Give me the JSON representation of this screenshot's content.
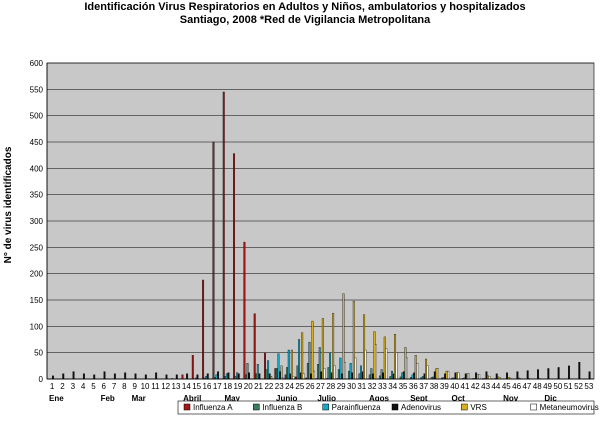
{
  "chart_data": {
    "type": "bar",
    "title": "Identificación Virus Respiratorios en Adultos y Niños, ambulatorios y hospitalizados",
    "subtitle": "Santiago, 2008  *Red de Vigilancia Metropolitana",
    "ylabel": "N° de virus identificados",
    "ylim": [
      0,
      600
    ],
    "yticks": [
      0,
      50,
      100,
      150,
      200,
      250,
      300,
      350,
      400,
      450,
      500,
      550,
      600
    ],
    "grid": true,
    "legend_placement": "bottom",
    "categories": [
      1,
      2,
      3,
      4,
      5,
      6,
      7,
      8,
      9,
      10,
      11,
      12,
      13,
      14,
      15,
      16,
      17,
      18,
      19,
      20,
      21,
      22,
      23,
      24,
      25,
      26,
      27,
      28,
      29,
      30,
      31,
      32,
      33,
      34,
      35,
      36,
      37,
      38,
      39,
      40,
      41,
      42,
      43,
      44,
      45,
      46,
      47,
      48,
      49,
      50,
      51,
      52,
      53
    ],
    "tick_labels": [
      "1",
      "2",
      "3",
      "4",
      "5",
      "6",
      "7",
      "8",
      "9",
      "10",
      "11",
      "12",
      "13",
      "14",
      "15",
      "16",
      "17",
      "18",
      "19",
      "20",
      "21",
      "22",
      "23",
      "24",
      "25",
      "26",
      "27",
      "28",
      "29",
      "30",
      "31",
      "32",
      "33",
      "34",
      "35",
      "36",
      "37",
      "38",
      "39",
      "40",
      "41",
      "42",
      "43",
      "44",
      "45",
      "46",
      "47",
      "48",
      "49",
      "50",
      "51",
      "52",
      "53"
    ],
    "months": [
      {
        "label": "Ene",
        "week": 1
      },
      {
        "label": "Feb",
        "week": 6
      },
      {
        "label": "Mar",
        "week": 9
      },
      {
        "label": "Abril",
        "week": 14
      },
      {
        "label": "May",
        "week": 18
      },
      {
        "label": "Junio",
        "week": 23
      },
      {
        "label": "Julio",
        "week": 27
      },
      {
        "label": "Agos",
        "week": 32
      },
      {
        "label": "Sept",
        "week": 36
      },
      {
        "label": "Oct",
        "week": 40
      },
      {
        "label": "Nov",
        "week": 45
      },
      {
        "label": "Dic",
        "week": 49
      }
    ],
    "series": [
      {
        "name": "Influenza A",
        "color": "#a01818",
        "values": [
          0,
          0,
          0,
          0,
          0,
          0,
          0,
          0,
          0,
          0,
          0,
          0,
          1,
          8,
          45,
          188,
          450,
          545,
          428,
          260,
          124,
          50,
          20,
          8,
          4,
          2,
          1,
          1,
          1,
          0,
          0,
          0,
          0,
          0,
          0,
          0,
          0,
          0,
          0,
          0,
          0,
          0,
          0,
          0,
          0,
          0,
          0,
          0,
          0,
          0,
          0,
          0,
          0
        ]
      },
      {
        "name": "Influenza B",
        "color": "#3a7d5c",
        "values": [
          0,
          0,
          0,
          0,
          0,
          0,
          0,
          0,
          0,
          0,
          0,
          0,
          0,
          0,
          0,
          2,
          3,
          5,
          5,
          8,
          10,
          18,
          20,
          22,
          25,
          30,
          28,
          22,
          18,
          15,
          10,
          8,
          6,
          5,
          4,
          3,
          3,
          3,
          2,
          2,
          1,
          1,
          1,
          0,
          0,
          0,
          0,
          0,
          0,
          0,
          0,
          0,
          0
        ]
      },
      {
        "name": "Parainfluenza",
        "color": "#18a8c8",
        "values": [
          0,
          0,
          0,
          0,
          0,
          0,
          0,
          0,
          0,
          0,
          0,
          0,
          0,
          0,
          2,
          5,
          8,
          10,
          12,
          30,
          28,
          35,
          48,
          55,
          75,
          70,
          60,
          50,
          40,
          30,
          25,
          20,
          18,
          15,
          12,
          8,
          5,
          4,
          3,
          2,
          2,
          1,
          1,
          1,
          0,
          0,
          0,
          0,
          0,
          0,
          0,
          0,
          0
        ]
      },
      {
        "name": "Adenovirus",
        "color": "#101010",
        "values": [
          6,
          10,
          14,
          10,
          8,
          14,
          10,
          12,
          10,
          8,
          12,
          8,
          8,
          10,
          8,
          10,
          14,
          12,
          10,
          12,
          10,
          10,
          14,
          10,
          12,
          10,
          14,
          12,
          10,
          12,
          14,
          10,
          12,
          10,
          14,
          12,
          10,
          14,
          10,
          12,
          10,
          12,
          14,
          10,
          12,
          14,
          16,
          18,
          20,
          22,
          25,
          32,
          14
        ]
      },
      {
        "name": "VRS",
        "color": "#d8b020",
        "values": [
          0,
          0,
          0,
          0,
          0,
          0,
          0,
          0,
          0,
          0,
          0,
          0,
          0,
          0,
          0,
          0,
          0,
          0,
          0,
          0,
          0,
          5,
          25,
          55,
          88,
          110,
          115,
          125,
          162,
          148,
          122,
          90,
          80,
          85,
          60,
          45,
          38,
          20,
          15,
          12,
          10,
          8,
          6,
          4,
          3,
          2,
          1,
          1,
          0,
          0,
          0,
          0,
          0
        ]
      },
      {
        "name": "Metaneumovirus",
        "color": "#ffffff",
        "values": [
          0,
          0,
          0,
          0,
          0,
          0,
          0,
          0,
          0,
          0,
          0,
          0,
          0,
          0,
          0,
          0,
          0,
          0,
          0,
          0,
          0,
          0,
          2,
          5,
          10,
          15,
          20,
          25,
          32,
          40,
          55,
          65,
          58,
          50,
          40,
          30,
          25,
          20,
          15,
          12,
          10,
          8,
          5,
          3,
          2,
          1,
          0,
          0,
          0,
          0,
          0,
          0,
          0
        ]
      }
    ]
  }
}
